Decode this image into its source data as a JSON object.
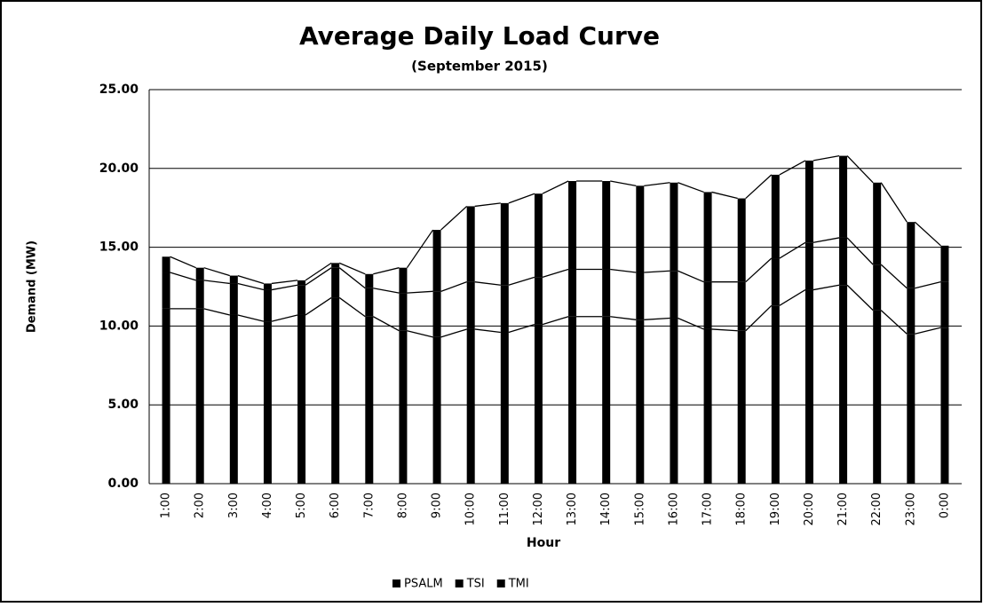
{
  "chart_data": {
    "type": "bar",
    "stacked": true,
    "series_lines": true,
    "title": "Average Daily Load Curve",
    "subtitle": "(September 2015)",
    "x_label": "Hour",
    "y_label": "Demand (MW)",
    "categories": [
      "1:00",
      "2:00",
      "3:00",
      "4:00",
      "5:00",
      "6:00",
      "7:00",
      "8:00",
      "9:00",
      "10:00",
      "11:00",
      "12:00",
      "13:00",
      "14:00",
      "15:00",
      "16:00",
      "17:00",
      "18:00",
      "19:00",
      "20:00",
      "21:00",
      "22:00",
      "23:00",
      "0:00"
    ],
    "series": [
      {
        "name": "PSALM",
        "color": "#000000",
        "values": [
          11.1,
          11.1,
          10.7,
          10.3,
          10.7,
          11.8,
          10.6,
          9.7,
          9.3,
          9.8,
          9.6,
          10.1,
          10.6,
          10.6,
          10.4,
          10.5,
          9.8,
          9.7,
          11.3,
          12.3,
          12.6,
          11.0,
          9.5,
          9.9
        ]
      },
      {
        "name": "TSI",
        "color": "#000000",
        "values": [
          2.3,
          1.8,
          2.0,
          2.0,
          1.9,
          1.9,
          1.8,
          2.4,
          2.9,
          3.0,
          3.0,
          3.0,
          3.0,
          3.0,
          3.0,
          3.0,
          3.0,
          3.1,
          3.0,
          3.0,
          3.0,
          2.9,
          2.9,
          2.9
        ]
      },
      {
        "name": "TMI",
        "color": "#000000",
        "values": [
          1.0,
          0.8,
          0.5,
          0.4,
          0.3,
          0.3,
          0.9,
          1.6,
          3.9,
          4.8,
          5.2,
          5.3,
          5.6,
          5.6,
          5.5,
          5.6,
          5.7,
          5.3,
          5.3,
          5.2,
          5.2,
          5.2,
          4.2,
          2.3
        ]
      }
    ],
    "ylim": [
      0,
      25
    ],
    "yticks": [
      {
        "value": 0,
        "label": "0.00"
      },
      {
        "value": 5,
        "label": "5.00"
      },
      {
        "value": 10,
        "label": "10.00"
      },
      {
        "value": 15,
        "label": "15.00"
      },
      {
        "value": 20,
        "label": "20.00"
      },
      {
        "value": 25,
        "label": "25.00"
      }
    ],
    "grid": true,
    "legend": "bottom"
  }
}
